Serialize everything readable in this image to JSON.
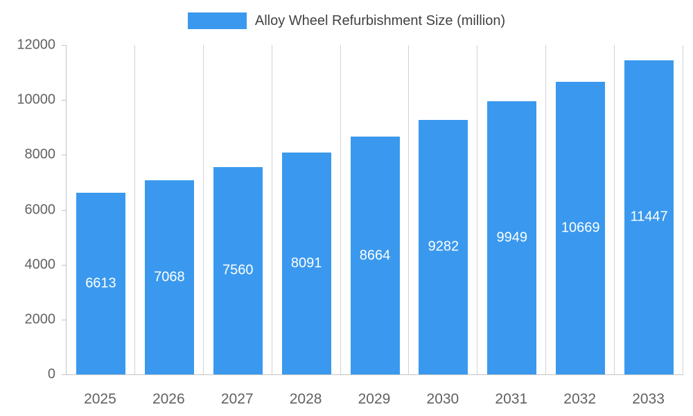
{
  "legend": {
    "label": "Alloy Wheel Refurbishment Size (million)"
  },
  "colors": {
    "bar": "#3A99EE",
    "axis": "#c3c3c3",
    "grid": "#d2d2d2",
    "tick_label": "#616161",
    "bar_label": "#ffffff",
    "legend_text": "#424242"
  },
  "chart_data": {
    "type": "bar",
    "title": "Alloy Wheel Refurbishment Size (million)",
    "categories": [
      "2025",
      "2026",
      "2027",
      "2028",
      "2029",
      "2030",
      "2031",
      "2032",
      "2033"
    ],
    "values": [
      6613,
      7068,
      7560,
      8091,
      8664,
      9282,
      9949,
      10669,
      11447
    ],
    "xlabel": "",
    "ylabel": "",
    "ylim": [
      0,
      12000
    ],
    "yticks": [
      0,
      2000,
      4000,
      6000,
      8000,
      10000,
      12000
    ],
    "grid": "vertical",
    "legend_position": "top",
    "value_labels": "inside-center-white"
  }
}
